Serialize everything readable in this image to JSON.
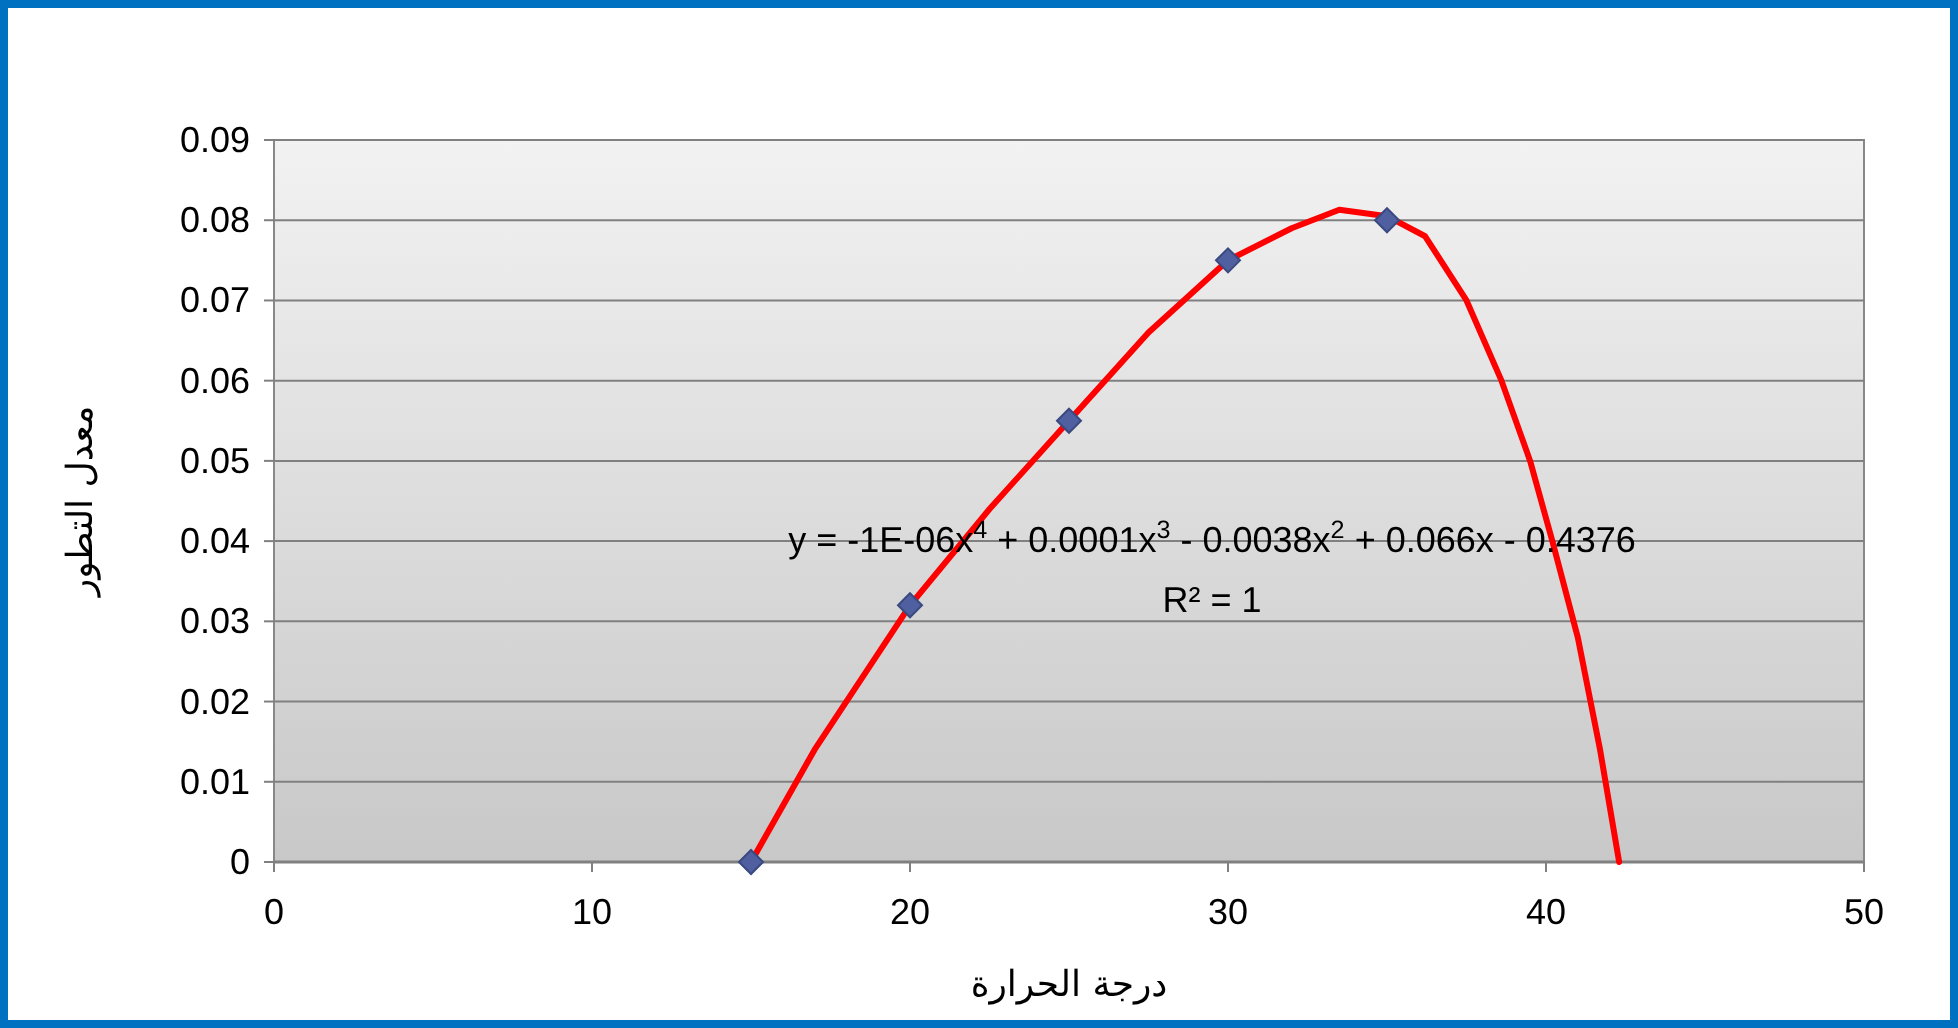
{
  "chart_data": {
    "type": "scatter",
    "xlabel": "درجة الحرارة",
    "ylabel": "معدل التطور",
    "series": [
      {
        "color": "#4f5fa0",
        "marker": "diamond",
        "x": [
          15,
          20,
          25,
          30,
          35
        ],
        "values": [
          0,
          0.032,
          0.055,
          0.075,
          0.08
        ]
      },
      {
        "type": "line",
        "color": "#ff0000",
        "marker": "none",
        "x": [
          15,
          17,
          20,
          22.5,
          25,
          27.5,
          30,
          32,
          33.5,
          35,
          36.2,
          37.5,
          38.6,
          39.5,
          40.2,
          41,
          41.7,
          42.3
        ],
        "values": [
          0,
          0.014,
          0.032,
          0.044,
          0.055,
          0.066,
          0.075,
          0.079,
          0.0813,
          0.0805,
          0.078,
          0.07,
          0.06,
          0.05,
          0.04,
          0.028,
          0.014,
          0
        ]
      }
    ],
    "annotations": [
      "y = -1E-06x$^{4}$ + 0.0001x$^{3}$ - 0.0038x$^{2}$ + 0.066x - 0.4376",
      "R² = 1"
    ],
    "xlim": [
      0,
      50
    ],
    "ylim": [
      0,
      0.09
    ],
    "xticks": [
      0,
      10,
      20,
      30,
      40,
      50
    ],
    "yticks": [
      0,
      0.01,
      0.02,
      0.03,
      0.04,
      0.05,
      0.06,
      0.07,
      0.08,
      0.09
    ],
    "grid": "y"
  }
}
